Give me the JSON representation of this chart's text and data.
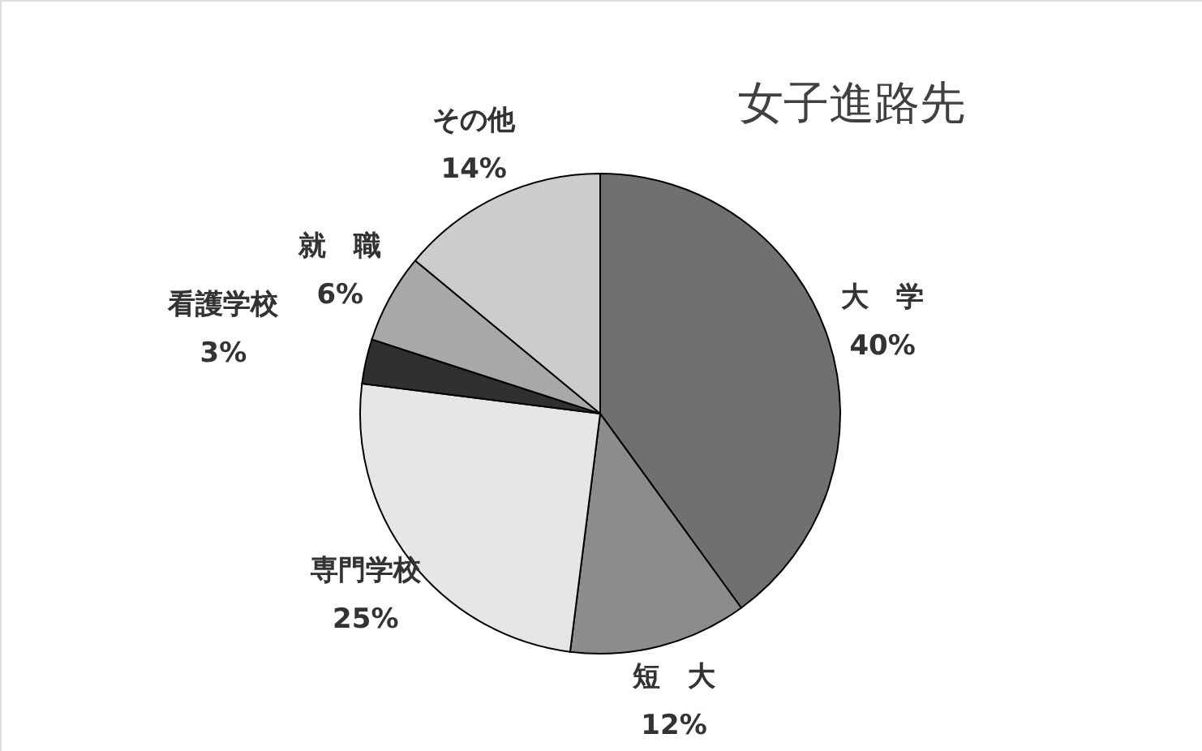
{
  "chart_data": {
    "type": "pie",
    "title": "女子進路先",
    "categories": [
      "大　学",
      "短　大",
      "専門学校",
      "看護学校",
      "就　職",
      "その他"
    ],
    "values": [
      40,
      12,
      25,
      3,
      6,
      14
    ],
    "value_labels": [
      "40%",
      "12%",
      "25%",
      "3%",
      "6%",
      "14%"
    ],
    "colors": [
      "#707070",
      "#8c8c8c",
      "#e6e6e6",
      "#303030",
      "#a8a8a8",
      "#cccccc"
    ]
  }
}
